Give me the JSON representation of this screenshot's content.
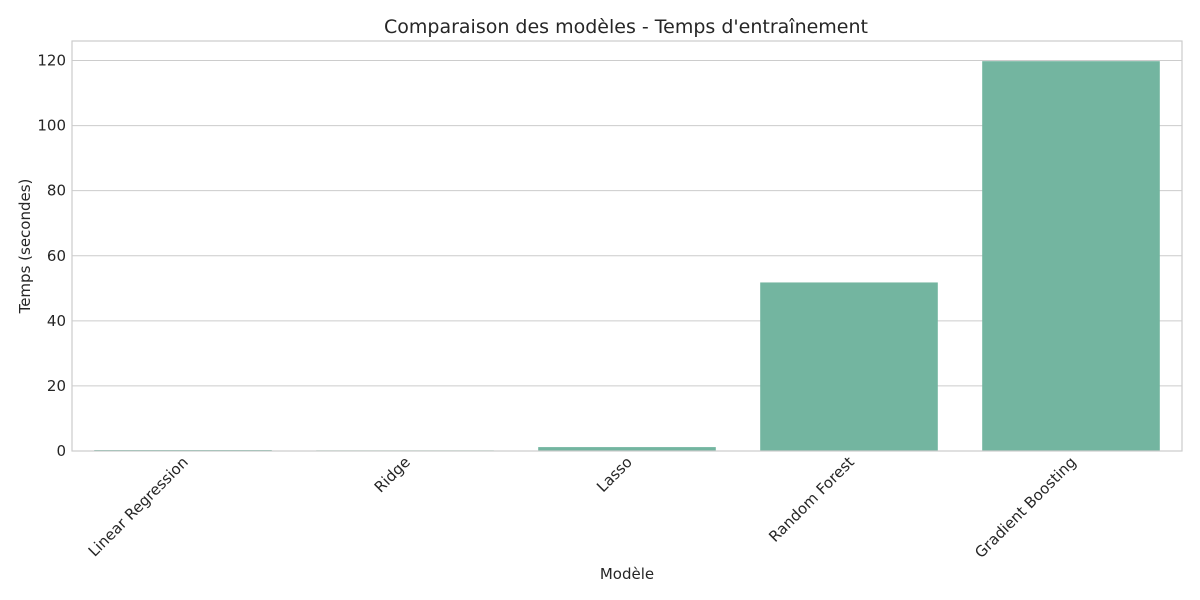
{
  "chart_data": {
    "type": "bar",
    "title": "Comparaison des modèles - Temps d'entraînement",
    "xlabel": "Modèle",
    "ylabel": "Temps (secondes)",
    "categories": [
      "Linear Regression",
      "Ridge",
      "Lasso",
      "Random Forest",
      "Gradient Boosting"
    ],
    "values": [
      0.3,
      0.2,
      1.2,
      51.8,
      119.8
    ],
    "ylim": [
      0,
      126
    ],
    "yticks": [
      0,
      20,
      40,
      60,
      80,
      100,
      120
    ],
    "grid": true,
    "bar_color": "#73b5a0",
    "grid_color": "#cccccc",
    "x_tick_rotation_deg": 45
  }
}
